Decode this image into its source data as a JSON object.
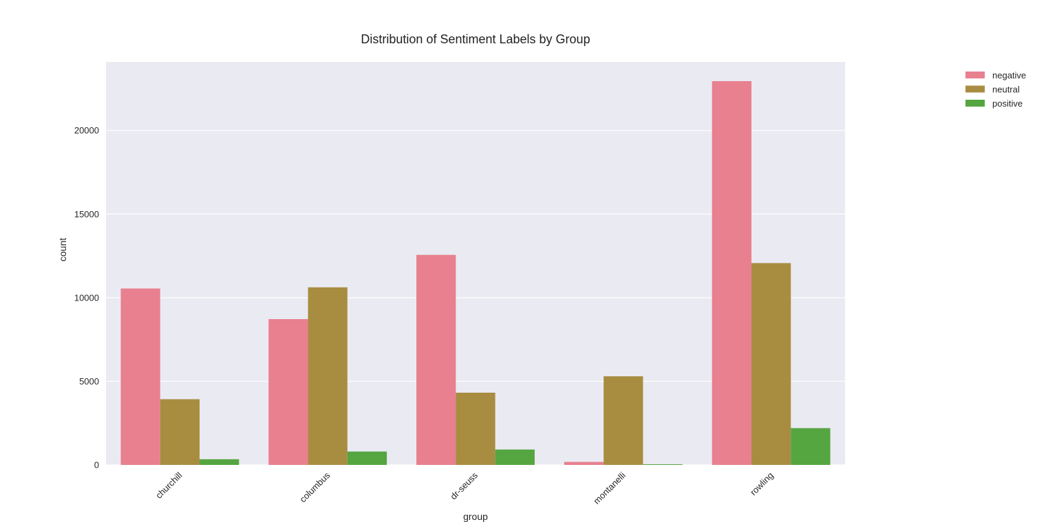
{
  "chart_data": {
    "type": "bar",
    "title": "Distribution of Sentiment Labels by Group",
    "xlabel": "group",
    "ylabel": "count",
    "categories": [
      "churchill",
      "columbus",
      "dr-seuss",
      "montanelli",
      "rowling"
    ],
    "series": [
      {
        "name": "negative",
        "color": "#e8808f",
        "values": [
          10550,
          8720,
          12560,
          180,
          22950
        ]
      },
      {
        "name": "neutral",
        "color": "#a88d41",
        "values": [
          3930,
          10620,
          4320,
          5300,
          12070
        ]
      },
      {
        "name": "positive",
        "color": "#55a541",
        "values": [
          340,
          800,
          920,
          40,
          2200
        ]
      }
    ],
    "yticks": [
      0,
      5000,
      10000,
      15000,
      20000
    ],
    "ylim": [
      0,
      24100
    ],
    "grid": true,
    "legend_position": "top-right-outside",
    "plot_background": "#eaeaf2",
    "grid_color": "#ffffff"
  }
}
